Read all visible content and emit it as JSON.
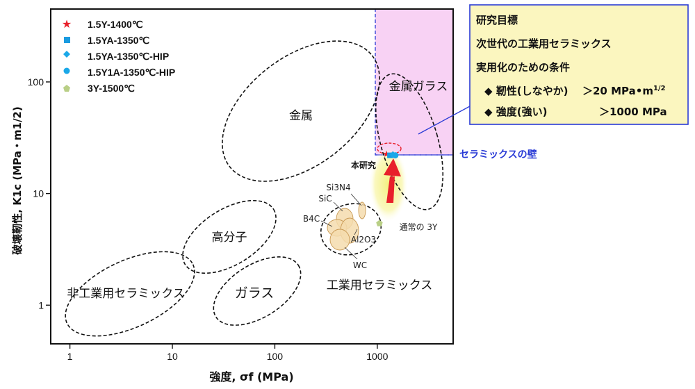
{
  "chart_data": {
    "type": "scatter",
    "x_scale": "log",
    "y_scale": "log",
    "xlim": [
      0.65,
      5500
    ],
    "ylim": [
      0.45,
      450
    ],
    "grid": false,
    "legend_position": "top-left",
    "xlabel": "強度, σf (MPa)",
    "ylabel": "破壊靭性, K1c (MPa・m1/2)",
    "x_ticks": [
      {
        "value": 1,
        "label": "1"
      },
      {
        "value": 10,
        "label": "10"
      },
      {
        "value": 100,
        "label": "100"
      },
      {
        "value": 1000,
        "label": "1000"
      }
    ],
    "y_ticks": [
      {
        "value": 1,
        "label": "1"
      },
      {
        "value": 10,
        "label": "10"
      },
      {
        "value": 100,
        "label": "100"
      }
    ],
    "series": [
      {
        "name": "1.5Y-1400℃",
        "marker": "star",
        "color": "#e8202a",
        "x": [
          1230
        ],
        "y": [
          22.8
        ]
      },
      {
        "name": "1.5YA-1350℃",
        "marker": "square",
        "color": "#1a9be0",
        "x": [
          1330
        ],
        "y": [
          22.0
        ]
      },
      {
        "name": "1.5YA-1350℃-HIP",
        "marker": "diamond",
        "color": "#1aa8e8",
        "x": [
          1420
        ],
        "y": [
          22.3
        ]
      },
      {
        "name": "1.5Y1A-1350℃-HIP",
        "marker": "circle",
        "color": "#1aa8e8",
        "x": [
          1500
        ],
        "y": [
          22.0
        ]
      },
      {
        "name": "3Y-1500℃",
        "marker": "pentagon",
        "color": "#b9cf86",
        "x": [
          1050
        ],
        "y": [
          5.4
        ]
      }
    ],
    "regions": [
      {
        "label": "非工業用セラミックス"
      },
      {
        "label": "高分子"
      },
      {
        "label": "ガラス"
      },
      {
        "label": "金属"
      },
      {
        "label": "金属ガラス"
      },
      {
        "label": "工業用セラミックス"
      }
    ],
    "ceramic_labels": [
      {
        "label": "Si3N4"
      },
      {
        "label": "SiC"
      },
      {
        "label": "B4C"
      },
      {
        "label": "Al2O3"
      },
      {
        "label": "WC"
      }
    ],
    "annotations": {
      "this_study": "本研究",
      "normal_3y": "通常の 3Y",
      "ceramic_wall": "セラミックスの壁"
    }
  },
  "goal_box": {
    "title": "研究目標",
    "line1": "次世代の工業用セラミックス",
    "line2": "実用化のための条件",
    "item1_label": "◆ 靭性(しなやか)",
    "item1_value": "＞20 MPa•m",
    "item1_sup": "1/2",
    "item2_label": "◆ 強度(強い)",
    "item2_value": "＞1000 MPa"
  },
  "colors": {
    "target_fill": "#f8d2f4",
    "target_border": "#2a3bd6",
    "box_fill": "#fbf6bf",
    "box_border": "#2a3bd6",
    "arrow": "#e8202a",
    "glow": "#f3f07a",
    "blob_fill": "#f5dcae",
    "blob_stroke": "#c99a55",
    "wall_text": "#2a3bd6"
  }
}
